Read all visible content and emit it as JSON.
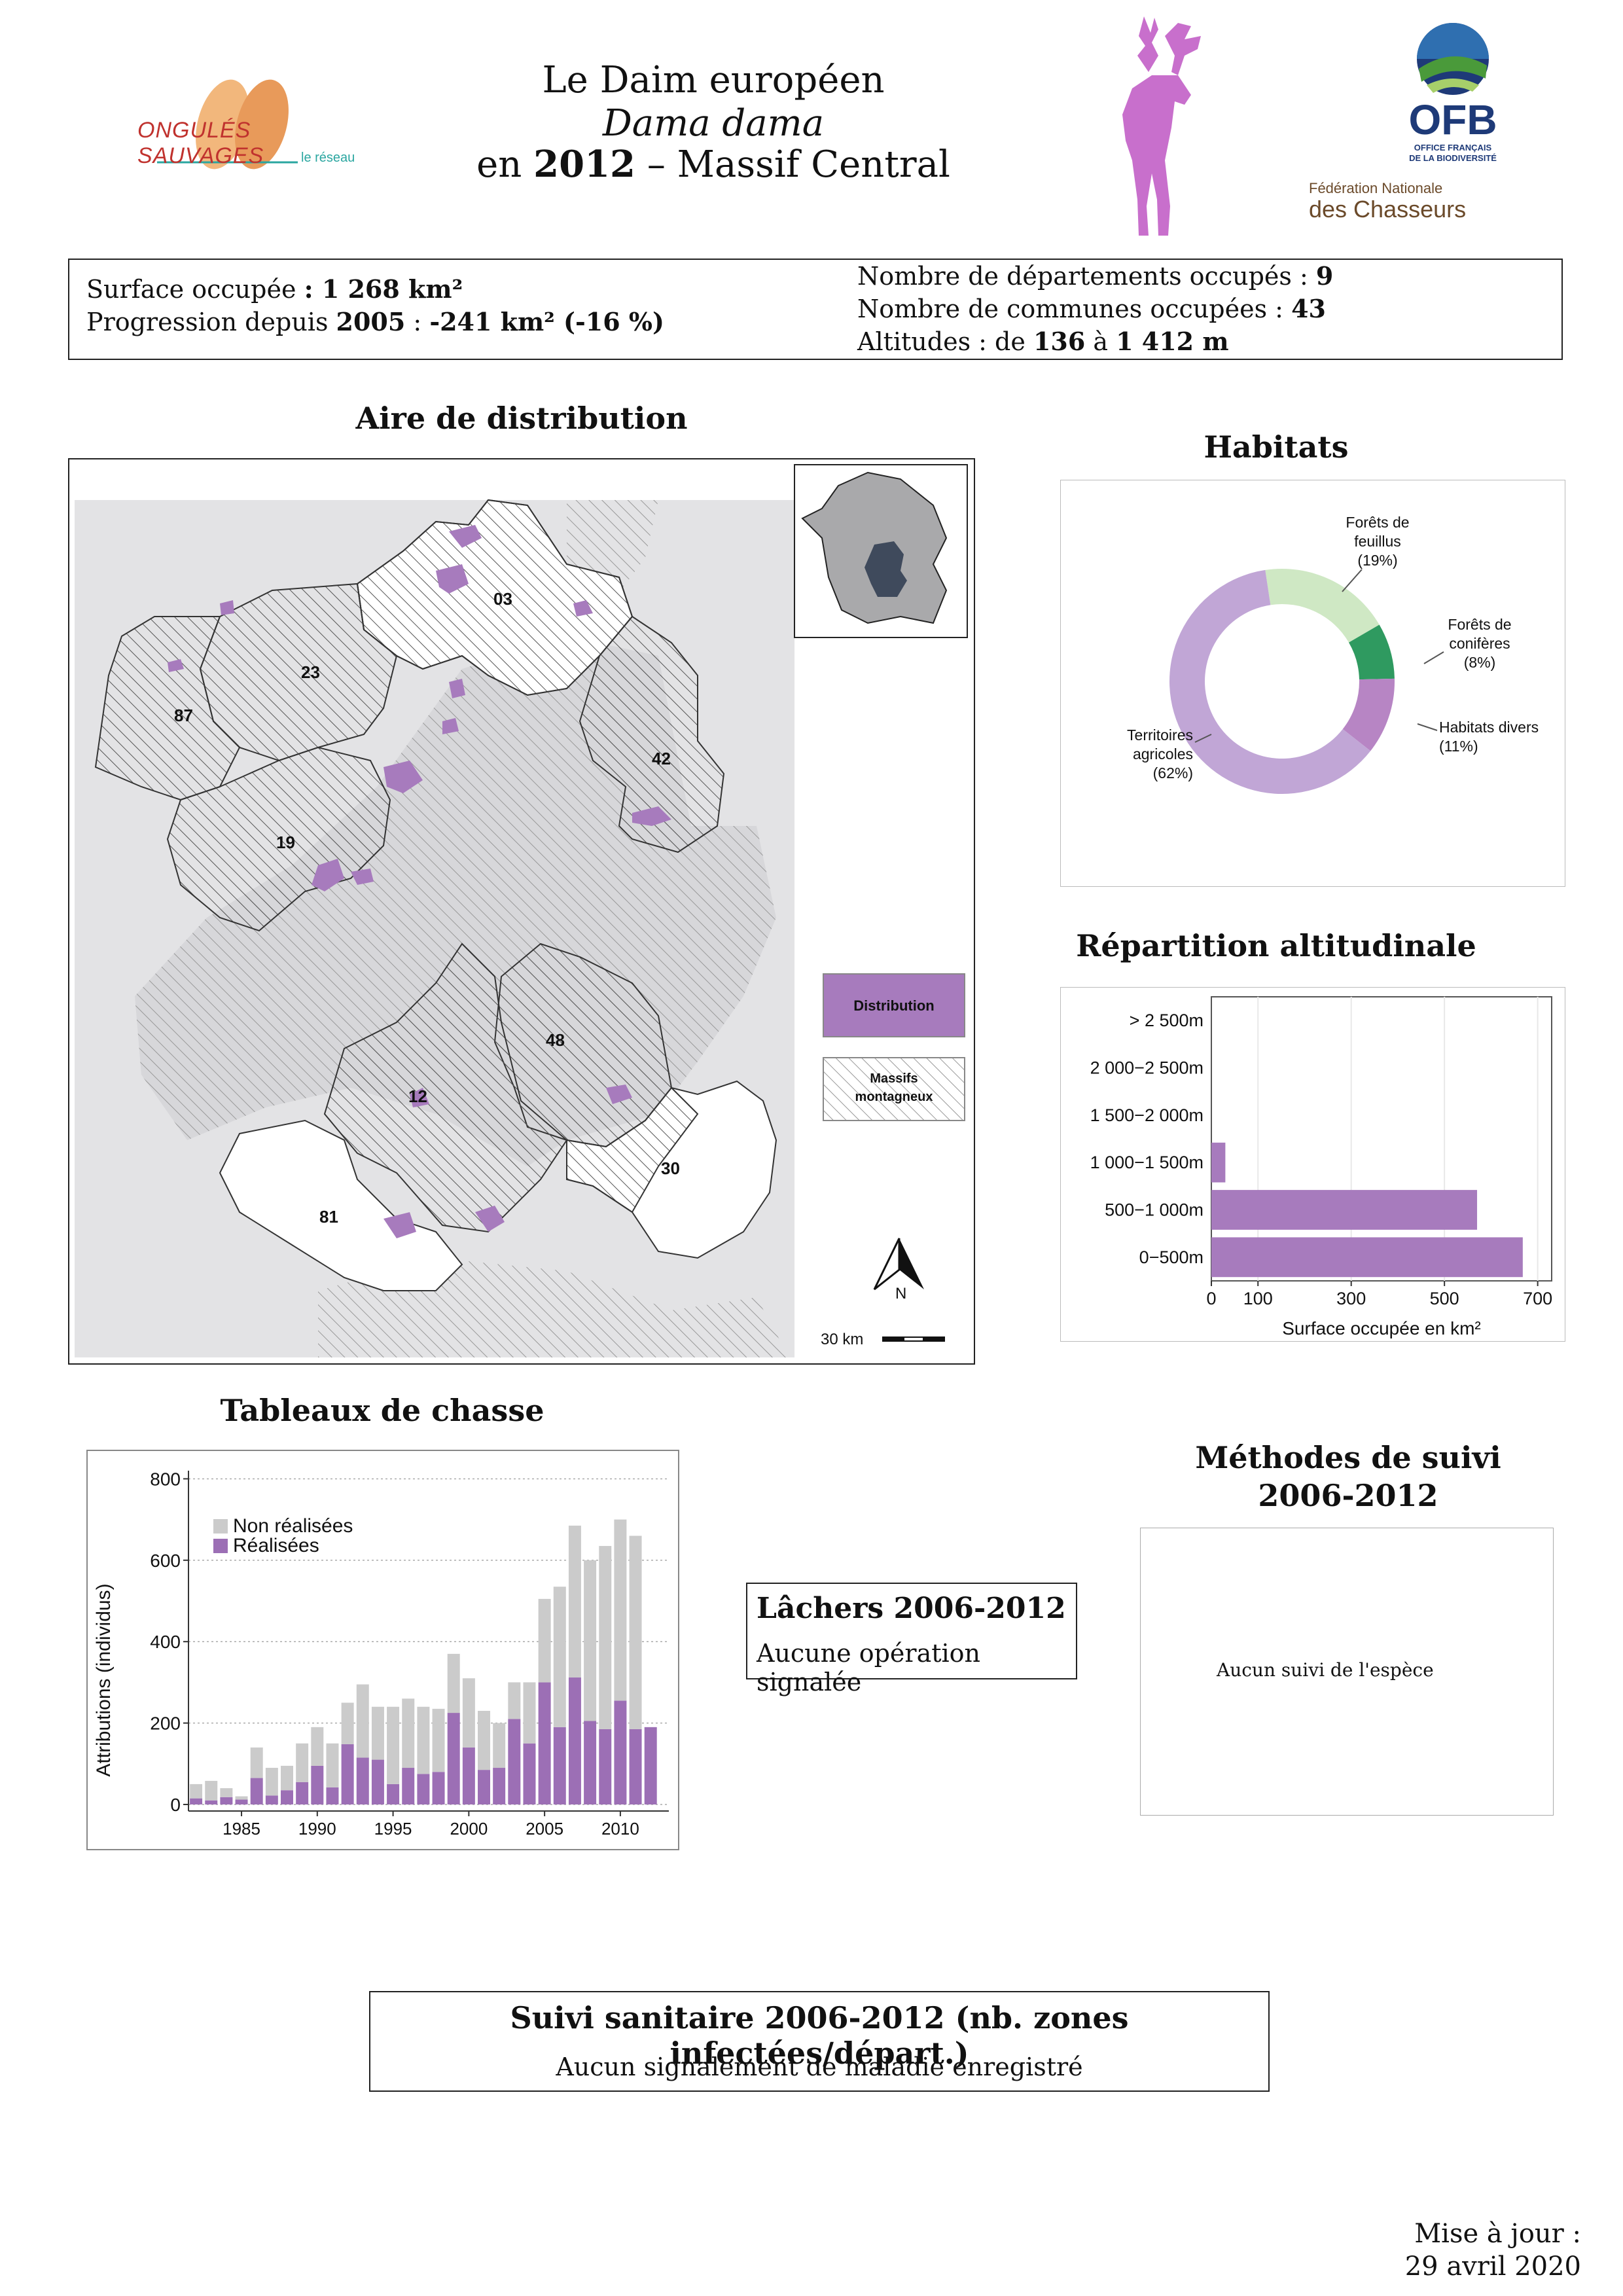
{
  "header": {
    "title_line1": "Le Daim européen",
    "title_line2": "Dama dama",
    "title_line3_prefix": "en",
    "title_line3_year": "2012",
    "title_line3_sep": "–",
    "title_line3_region": "Massif Central",
    "logo_left_text": "ONGULÉS SAUVAGES",
    "logo_left_sub": "le réseau",
    "logo_ofb_text": "OFB",
    "logo_ofb_sub1": "OFFICE FRANÇAIS",
    "logo_ofb_sub2": "DE LA BIODIVERSITÉ",
    "logo_fnc_line1": "Fédération Nationale",
    "logo_fnc_line2": "des Chasseurs",
    "colors": {
      "deer": "#c86fcc",
      "ofb_blue": "#1e3a78",
      "ofb_green": "#4a9a3a",
      "onglets_orange": "#e59a55",
      "onglets_red": "#c0322e"
    }
  },
  "stats": {
    "surface_label": "Surface occupée",
    "surface_value": ": 1 268 km²",
    "progression_label": "Progression depuis",
    "progression_year": "2005",
    "progression_sep": ":",
    "progression_value": "-241 km² (-16 %)",
    "departements_label": "Nombre de départements occupés :",
    "departements_value": "9",
    "communes_label": "Nombre de communes occupées :",
    "communes_value": "43",
    "altitudes_label": "Altitudes : de",
    "altitude_min": "136",
    "altitude_sep": "à",
    "altitude_max": "1 412 m"
  },
  "map": {
    "title": "Aire de distribution",
    "departments": [
      "03",
      "23",
      "87",
      "42",
      "19",
      "48",
      "12",
      "30",
      "81"
    ],
    "legend_distribution": "Distribution",
    "legend_mountains_line1": "Massifs",
    "legend_mountains_line2": "montagneux",
    "north_label": "N",
    "scale_label": "30 km",
    "colors": {
      "distribution": "#a77bbd",
      "mountains": "#dcdcde",
      "inset_fill": "#a9a9ab"
    }
  },
  "habitats": {
    "title": "Habitats",
    "labels": [
      {
        "line1": "Forêts de",
        "line2": "feuillus",
        "line3": "(19%)"
      },
      {
        "line1": "Forêts de",
        "line2": "conifères",
        "line3": "(8%)"
      },
      {
        "line1": "Habitats divers",
        "line2": "(11%)"
      },
      {
        "line1": "Territoires",
        "line2": "agricoles",
        "line3": "(62%)"
      }
    ]
  },
  "altitude": {
    "title": "Répartition altitudinale",
    "xlabel": "Surface occupée en km²",
    "categories": [
      "> 2 500m",
      "2 000−2 500m",
      "1 500−2 000m",
      "1 000−1 500m",
      "500−1 000m",
      "0−500m"
    ],
    "ticks": [
      "0",
      "100",
      "300",
      "500",
      "700"
    ]
  },
  "chasse": {
    "title": "Tableaux de chasse",
    "ylabel": "Attributions (individus)",
    "legend_non": "Non réalisées",
    "legend_real": "Réalisées",
    "yticks": [
      "0",
      "200",
      "400",
      "600",
      "800"
    ],
    "xticks": [
      "1985",
      "1990",
      "1995",
      "2000",
      "2005",
      "2010"
    ]
  },
  "lachers": {
    "title": "Lâchers 2006-2012",
    "text": "Aucune opération signalée"
  },
  "methodes": {
    "title_line1": "Méthodes de suivi",
    "title_line2": "2006-2012",
    "text": "Aucun suivi de l'espèce"
  },
  "sanitaire": {
    "title": "Suivi sanitaire 2006-2012 (nb. zones infectées/départ.)",
    "text": "Aucun signalement de maladie enregistré"
  },
  "footer": {
    "line1": "Mise à jour :",
    "line2": "29 avril 2020"
  },
  "chart_data": [
    {
      "type": "pie",
      "title": "Habitats",
      "categories": [
        "Forêts de feuillus",
        "Forêts de conifères",
        "Habitats divers",
        "Territoires agricoles"
      ],
      "values": [
        19,
        8,
        11,
        62
      ],
      "colors": [
        "#cfe8c4",
        "#2f9a60",
        "#b785c4",
        "#c1a6d6"
      ]
    },
    {
      "type": "bar",
      "title": "Répartition altitudinale",
      "orientation": "horizontal",
      "categories": [
        "> 2 500m",
        "2 000−2 500m",
        "1 500−2 000m",
        "1 000−1 500m",
        "500−1 000m",
        "0−500m"
      ],
      "values": [
        0,
        0,
        0,
        30,
        570,
        668
      ],
      "xlabel": "Surface occupée en km²",
      "xlim": [
        0,
        730
      ],
      "color": "#a77bbd"
    },
    {
      "type": "bar",
      "title": "Tableaux de chasse",
      "stacked": true,
      "ylabel": "Attributions (individus)",
      "ylim": [
        0,
        820
      ],
      "x": [
        1982,
        1983,
        1984,
        1985,
        1986,
        1987,
        1988,
        1989,
        1990,
        1991,
        1992,
        1993,
        1994,
        1995,
        1996,
        1997,
        1998,
        1999,
        2000,
        2001,
        2002,
        2003,
        2004,
        2005,
        2006,
        2007,
        2008,
        2009,
        2010,
        2011,
        2012
      ],
      "series": [
        {
          "name": "Réalisées",
          "color": "#9c6fb5",
          "values": [
            15,
            10,
            18,
            12,
            65,
            22,
            35,
            55,
            95,
            42,
            148,
            115,
            110,
            50,
            90,
            75,
            80,
            225,
            140,
            85,
            90,
            210,
            150,
            300,
            190,
            312,
            205,
            185,
            255,
            185,
            190
          ]
        },
        {
          "name": "Non réalisées",
          "color": "#cbcbcb",
          "values": [
            35,
            48,
            22,
            8,
            75,
            68,
            60,
            95,
            95,
            108,
            102,
            180,
            130,
            190,
            170,
            165,
            155,
            145,
            170,
            145,
            110,
            90,
            150,
            205,
            345,
            373,
            395,
            450,
            445,
            475,
            0
          ]
        }
      ]
    }
  ]
}
